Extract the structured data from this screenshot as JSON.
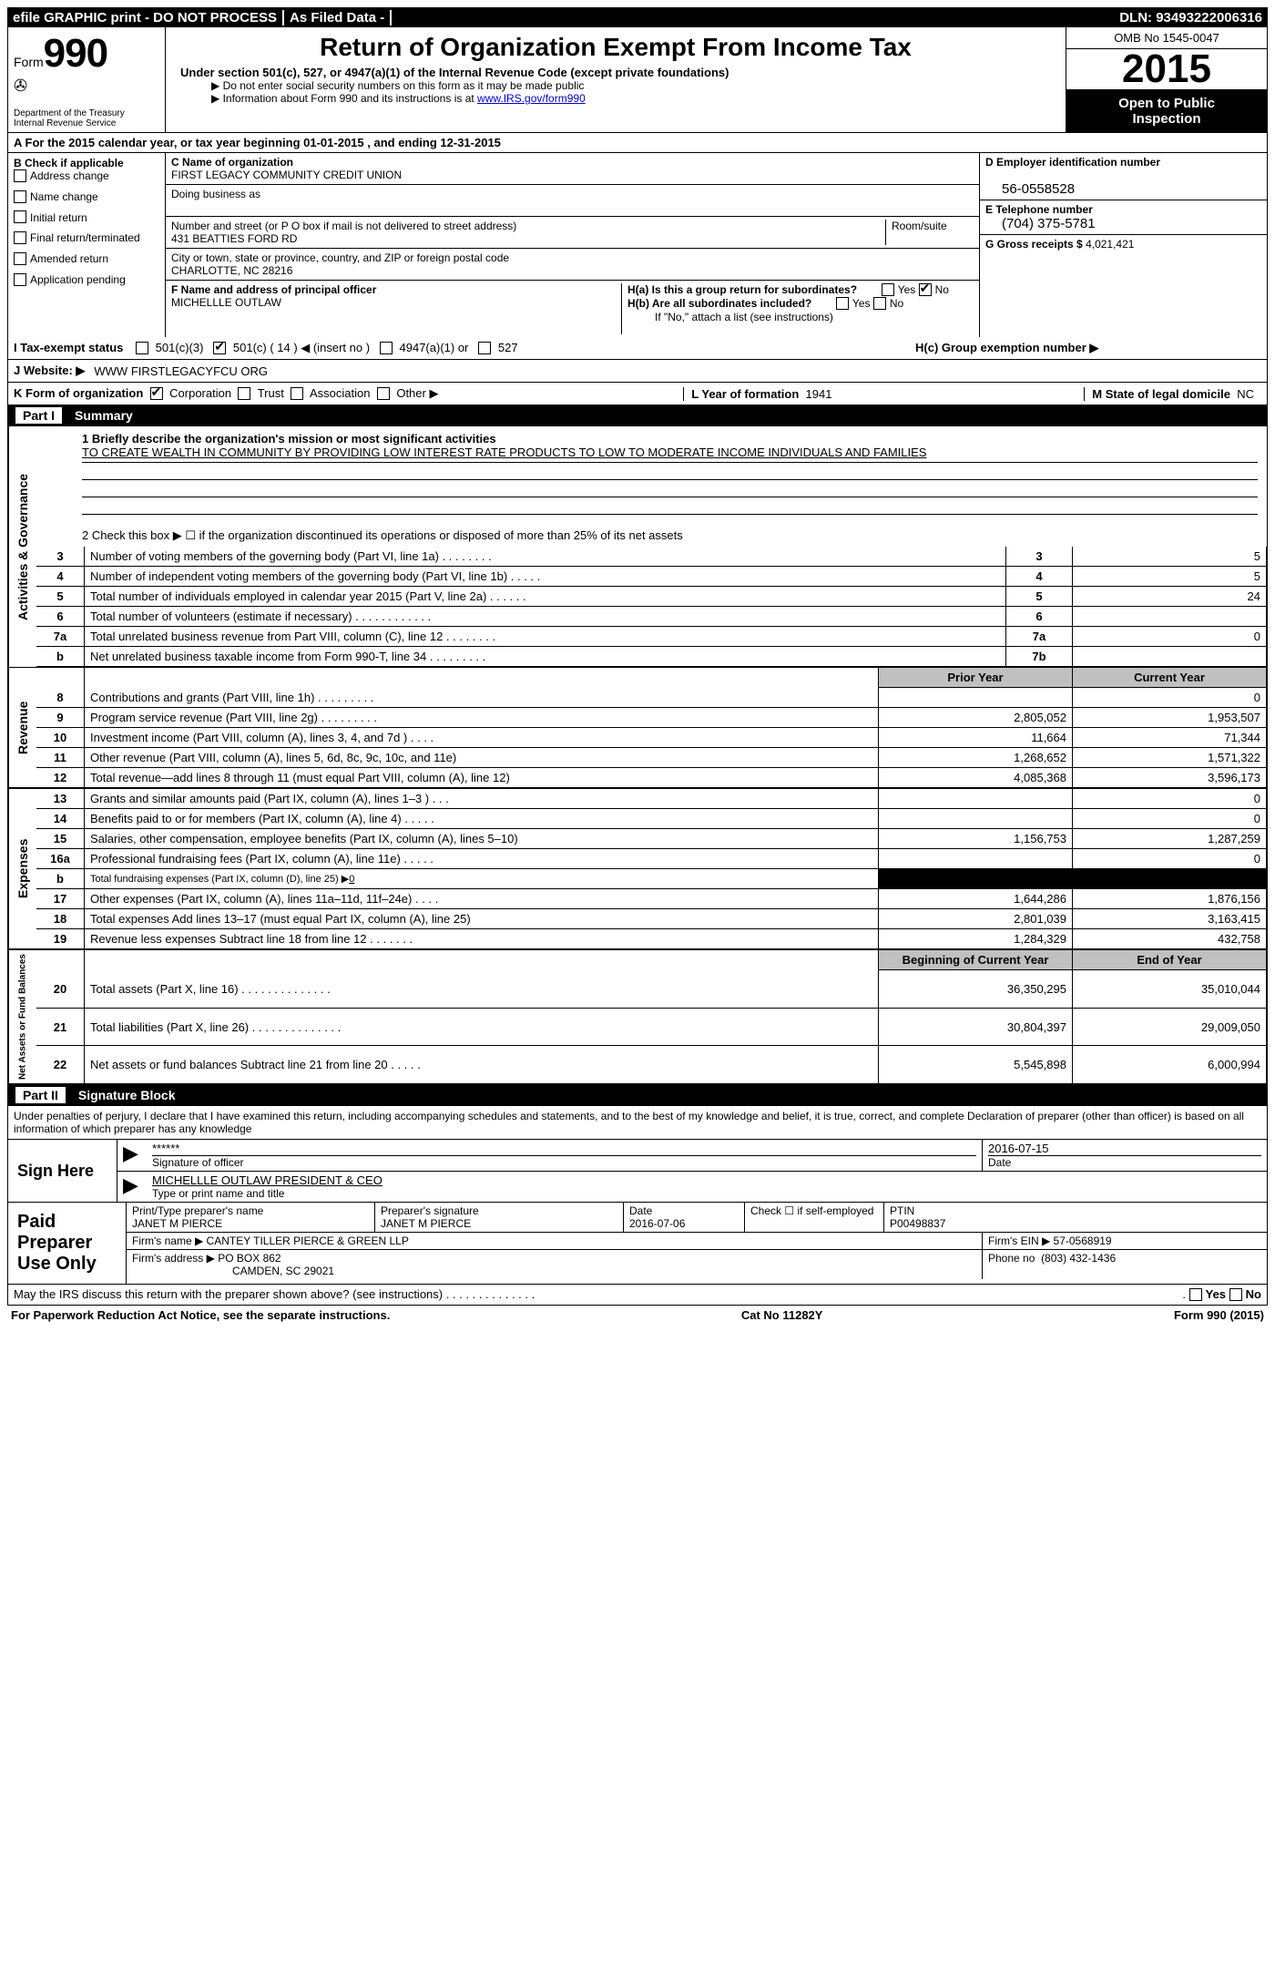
{
  "topbar": {
    "efile": "efile GRAPHIC print - DO NOT PROCESS",
    "asfiled": "As Filed Data -",
    "dln_label": "DLN:",
    "dln": "93493222006316"
  },
  "header": {
    "form_word": "Form",
    "form_num": "990",
    "dept": "Department of the Treasury",
    "irs": "Internal Revenue Service",
    "title": "Return of Organization Exempt From Income Tax",
    "subtitle": "Under section 501(c), 527, or 4947(a)(1) of the Internal Revenue Code (except private foundations)",
    "note1": "▶ Do not enter social security numbers on this form as it may be made public",
    "note2_pre": "▶ Information about Form 990 and its instructions is at ",
    "note2_link": "www.IRS.gov/form990",
    "omb": "OMB No 1545-0047",
    "year": "2015",
    "open1": "Open to Public",
    "open2": "Inspection"
  },
  "lineA": "A  For the 2015 calendar year, or tax year beginning 01-01-2015    , and ending 12-31-2015",
  "colB": {
    "hdr": "B Check if applicable",
    "items": [
      "Address change",
      "Name change",
      "Initial return",
      "Final return/terminated",
      "Amended return",
      "Application pending"
    ]
  },
  "colC": {
    "name_lbl": "C Name of organization",
    "name": "FIRST LEGACY COMMUNITY CREDIT UNION",
    "dba_lbl": "Doing business as",
    "street_lbl": "Number and street (or P O  box if mail is not delivered to street address)",
    "room_lbl": "Room/suite",
    "street": "431 BEATTIES FORD RD",
    "city_lbl": "City or town, state or province, country, and ZIP or foreign postal code",
    "city": "CHARLOTTE, NC  28216",
    "f_lbl": "F    Name and address of principal officer",
    "f_name": "MICHELLLE OUTLAW"
  },
  "colD": {
    "d_lbl": "D Employer identification number",
    "d_val": "56-0558528",
    "e_lbl": "E Telephone number",
    "e_val": "(704) 375-5781",
    "g_lbl": "G Gross receipts $",
    "g_val": "4,021,421",
    "ha": "H(a)  Is this a group return for subordinates?",
    "hb": "H(b)  Are all subordinates included?",
    "h_attach": "If \"No,\" attach a list  (see instructions)",
    "hc": "H(c)  Group exemption number ▶"
  },
  "rowI": {
    "lab": "I  Tax-exempt status",
    "opts": [
      "501(c)(3)",
      "501(c) ( 14 ) ◀ (insert no )",
      "4947(a)(1) or",
      "527"
    ]
  },
  "rowJ": {
    "lab": "J  Website: ▶",
    "val": "WWW FIRSTLEGACYFCU ORG"
  },
  "rowK": {
    "kform": "K Form of organization",
    "kopts": [
      "Corporation",
      "Trust",
      "Association",
      "Other ▶"
    ],
    "lyear_lbl": "L Year of formation",
    "lyear": "1941",
    "mstate_lbl": "M State of legal domicile",
    "mstate": "NC"
  },
  "part1": {
    "lbl": "Part I",
    "title": "Summary"
  },
  "mission": {
    "q": "1 Briefly describe the organization's mission or most significant activities",
    "text": "TO CREATE WEALTH IN COMMUNITY BY PROVIDING LOW INTEREST RATE PRODUCTS TO LOW TO MODERATE INCOME INDIVIDUALS AND FAMILIES",
    "q2": "2  Check this box ▶ ☐ if the organization discontinued its operations or disposed of more than 25% of its net assets"
  },
  "gov": {
    "tab": "Activities & Governance",
    "rows": [
      {
        "n": "3",
        "d": "Number of voting members of the governing body (Part VI, line 1a)  .    .    .    .    .    .    .    .",
        "b": "3",
        "v": "5"
      },
      {
        "n": "4",
        "d": "Number of independent voting members of the governing body (Part VI, line 1b)  .    .    .    .    .",
        "b": "4",
        "v": "5"
      },
      {
        "n": "5",
        "d": "Total number of individuals employed in calendar year 2015 (Part V, line 2a)  .    .    .    .    .    .",
        "b": "5",
        "v": "24"
      },
      {
        "n": "6",
        "d": "Total number of volunteers (estimate if necessary)   .    .    .    .    .    .    .    .    .    .    .    .",
        "b": "6",
        "v": ""
      },
      {
        "n": "7a",
        "d": "Total unrelated business revenue from Part VIII, column (C), line 12   .    .    .    .    .    .    .    .",
        "b": "7a",
        "v": "0"
      },
      {
        "n": "b",
        "d": "Net unrelated business taxable income from Form 990-T, line 34   .    .    .    .    .    .    .    .    .",
        "b": "7b",
        "v": ""
      }
    ]
  },
  "rev": {
    "tab": "Revenue",
    "hdr_prior": "Prior Year",
    "hdr_curr": "Current Year",
    "rows": [
      {
        "n": "8",
        "d": "Contributions and grants (Part VIII, line 1h)  .    .    .    .    .    .    .    .    .",
        "p": "",
        "c": "0"
      },
      {
        "n": "9",
        "d": "Program service revenue (Part VIII, line 2g)   .    .    .    .    .    .    .    .    .",
        "p": "2,805,052",
        "c": "1,953,507"
      },
      {
        "n": "10",
        "d": "Investment income (Part VIII, column (A), lines 3, 4, and 7d )   .    .    .    .",
        "p": "11,664",
        "c": "71,344"
      },
      {
        "n": "11",
        "d": "Other revenue (Part VIII, column (A), lines 5, 6d, 8c, 9c, 10c, and 11e)",
        "p": "1,268,652",
        "c": "1,571,322"
      },
      {
        "n": "12",
        "d": "Total revenue—add lines 8 through 11 (must equal Part VIII, column (A), line 12)",
        "p": "4,085,368",
        "c": "3,596,173"
      }
    ]
  },
  "exp": {
    "tab": "Expenses",
    "rows": [
      {
        "n": "13",
        "d": "Grants and similar amounts paid (Part IX, column (A), lines 1–3 )   .    .    .",
        "p": "",
        "c": "0"
      },
      {
        "n": "14",
        "d": "Benefits paid to or for members (Part IX, column (A), line 4)   .    .    .    .    .",
        "p": "",
        "c": "0"
      },
      {
        "n": "15",
        "d": "Salaries, other compensation, employee benefits (Part IX, column (A), lines 5–10)",
        "p": "1,156,753",
        "c": "1,287,259"
      },
      {
        "n": "16a",
        "d": "Professional fundraising fees (Part IX, column (A), line 11e)  .    .    .    .    .",
        "p": "",
        "c": "0"
      },
      {
        "n": "b",
        "d": "Total fundraising expenses (Part IX, column (D), line 25) ▶",
        "p": "BLACK",
        "c": "BLACK",
        "zero": "0"
      },
      {
        "n": "17",
        "d": "Other expenses (Part IX, column (A), lines 11a–11d, 11f–24e)   .    .    .    .",
        "p": "1,644,286",
        "c": "1,876,156"
      },
      {
        "n": "18",
        "d": "Total expenses  Add lines 13–17 (must equal Part IX, column (A), line 25)",
        "p": "2,801,039",
        "c": "3,163,415"
      },
      {
        "n": "19",
        "d": "Revenue less expenses  Subtract line 18 from line 12   .    .    .    .    .    .    .",
        "p": "1,284,329",
        "c": "432,758"
      }
    ]
  },
  "net": {
    "tab": "Net Assets or Fund Balances",
    "hdr_begin": "Beginning of Current Year",
    "hdr_end": "End of Year",
    "rows": [
      {
        "n": "20",
        "d": "Total assets (Part X, line 16)   .    .    .    .    .    .    .    .    .    .    .    .    .    .",
        "p": "36,350,295",
        "c": "35,010,044"
      },
      {
        "n": "21",
        "d": "Total liabilities (Part X, line 26)   .    .    .    .    .    .    .    .    .    .    .    .    .    .",
        "p": "30,804,397",
        "c": "29,009,050"
      },
      {
        "n": "22",
        "d": "Net assets or fund balances  Subtract line 21 from line 20   .    .    .    .    .",
        "p": "5,545,898",
        "c": "6,000,994"
      }
    ]
  },
  "part2": {
    "lbl": "Part II",
    "title": "Signature Block"
  },
  "penalties": "Under penalties of perjury, I declare that I have examined this return, including accompanying schedules and statements, and to the best of my knowledge and belief, it is true, correct, and complete  Declaration of preparer (other than officer) is based on all information of which preparer has any knowledge",
  "sign": {
    "here": "Sign Here",
    "stars": "******",
    "sig_lbl": "Signature of officer",
    "date": "2016-07-15",
    "date_lbl": "Date",
    "name": "MICHELLLE OUTLAW PRESIDENT & CEO",
    "name_lbl": "Type or print name and title"
  },
  "prep": {
    "here": "Paid Preparer Use Only",
    "h1": "Print/Type preparer's name",
    "h2": "Preparer's signature",
    "h3": "Date",
    "h4": "Check ☐ if self-employed",
    "h5": "PTIN",
    "name": "JANET M PIERCE",
    "sig": "JANET M PIERCE",
    "date": "2016-07-06",
    "ptin": "P00498837",
    "firm_lbl": "Firm's name      ▶",
    "firm": "CANTEY TILLER PIERCE & GREEN LLP",
    "ein_lbl": "Firm's EIN ▶",
    "ein": "57-0568919",
    "addr_lbl": "Firm's address ▶",
    "addr1": "PO BOX 862",
    "addr2": "CAMDEN, SC  29021",
    "phone_lbl": "Phone no",
    "phone": "(803) 432-1436"
  },
  "may": "May the IRS discuss this return with the preparer shown above? (see instructions)   .    .    .    .    .    .    .    .    .    .    .    .    .    .",
  "may_yes": "Yes",
  "may_no": "No",
  "footer": {
    "left": "For Paperwork Reduction Act Notice, see the separate instructions.",
    "mid": "Cat No  11282Y",
    "right": "Form 990 (2015)"
  }
}
